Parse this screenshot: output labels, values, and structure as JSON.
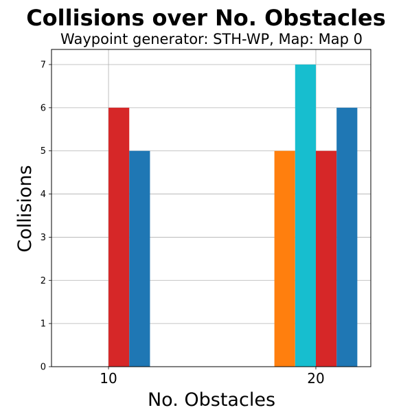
{
  "chart_data": {
    "type": "bar",
    "title": "Collisions over No. Obstacles",
    "subtitle": "Waypoint generator: STH-WP, Map: Map 0",
    "xlabel": "No. Obstacles",
    "ylabel": "Collisions",
    "x_ticks": [
      10,
      20
    ],
    "y_ticks": [
      0,
      1,
      2,
      3,
      4,
      5,
      6,
      7
    ],
    "xlim": [
      7.25,
      22.65
    ],
    "ylim": [
      0,
      7.35
    ],
    "grid": true,
    "bar_width": 1,
    "bars": [
      {
        "x": 10.5,
        "value": 6,
        "color": "#d62728"
      },
      {
        "x": 11.5,
        "value": 5,
        "color": "#1f77b4"
      },
      {
        "x": 18.5,
        "value": 5,
        "color": "#ff7f0e"
      },
      {
        "x": 19.5,
        "value": 7,
        "color": "#17becf"
      },
      {
        "x": 20.5,
        "value": 5,
        "color": "#d62728"
      },
      {
        "x": 21.5,
        "value": 6,
        "color": "#1f77b4"
      }
    ]
  }
}
